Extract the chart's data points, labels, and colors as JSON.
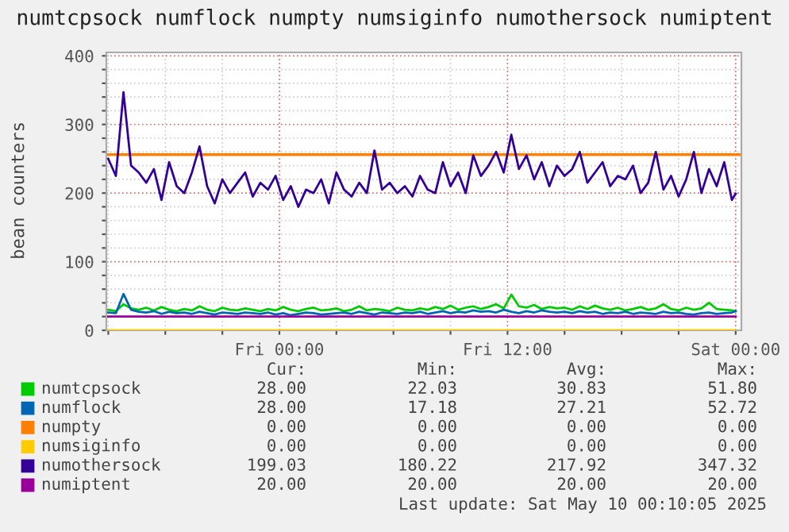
{
  "chart_data": {
    "type": "line",
    "title": "numtcpsock numflock numpty numsiginfo numothersock numiptent",
    "ylabel": "bean counters",
    "x": [
      "2025-05-08T15:00",
      "2025-05-08T15:24",
      "2025-05-08T15:48",
      "2025-05-08T16:12",
      "2025-05-08T16:36",
      "2025-05-08T17:00",
      "2025-05-08T17:24",
      "2025-05-08T17:48",
      "2025-05-08T18:12",
      "2025-05-08T18:36",
      "2025-05-08T19:00",
      "2025-05-08T19:24",
      "2025-05-08T19:48",
      "2025-05-08T20:12",
      "2025-05-08T20:36",
      "2025-05-08T21:00",
      "2025-05-08T21:24",
      "2025-05-08T21:48",
      "2025-05-08T22:12",
      "2025-05-08T22:36",
      "2025-05-08T23:00",
      "2025-05-08T23:24",
      "2025-05-08T23:48",
      "2025-05-09T00:12",
      "2025-05-09T00:36",
      "2025-05-09T01:00",
      "2025-05-09T01:24",
      "2025-05-09T01:48",
      "2025-05-09T02:12",
      "2025-05-09T02:36",
      "2025-05-09T03:00",
      "2025-05-09T03:24",
      "2025-05-09T03:48",
      "2025-05-09T04:12",
      "2025-05-09T04:36",
      "2025-05-09T05:00",
      "2025-05-09T05:24",
      "2025-05-09T05:48",
      "2025-05-09T06:12",
      "2025-05-09T06:36",
      "2025-05-09T07:00",
      "2025-05-09T07:24",
      "2025-05-09T07:48",
      "2025-05-09T08:12",
      "2025-05-09T08:36",
      "2025-05-09T09:00",
      "2025-05-09T09:24",
      "2025-05-09T09:48",
      "2025-05-09T10:12",
      "2025-05-09T10:36",
      "2025-05-09T11:00",
      "2025-05-09T11:24",
      "2025-05-09T11:48",
      "2025-05-09T12:12",
      "2025-05-09T12:36",
      "2025-05-09T13:00",
      "2025-05-09T13:24",
      "2025-05-09T13:48",
      "2025-05-09T14:12",
      "2025-05-09T14:36",
      "2025-05-09T15:00",
      "2025-05-09T15:24",
      "2025-05-09T15:48",
      "2025-05-09T16:12",
      "2025-05-09T16:36",
      "2025-05-09T17:00",
      "2025-05-09T17:24",
      "2025-05-09T17:48",
      "2025-05-09T18:12",
      "2025-05-09T18:36",
      "2025-05-09T19:00",
      "2025-05-09T19:24",
      "2025-05-09T19:48",
      "2025-05-09T20:12",
      "2025-05-09T20:36",
      "2025-05-09T21:00",
      "2025-05-09T21:24",
      "2025-05-09T21:48",
      "2025-05-09T22:12",
      "2025-05-09T22:36",
      "2025-05-09T23:00",
      "2025-05-09T23:24",
      "2025-05-09T23:48",
      "2025-05-10T00:00"
    ],
    "series": [
      {
        "name": "numtcpsock",
        "color": "#00cc00",
        "values": [
          30,
          28,
          38,
          32,
          30,
          33,
          29,
          34,
          30,
          28,
          31,
          29,
          35,
          30,
          28,
          33,
          30,
          29,
          32,
          30,
          28,
          31,
          29,
          34,
          30,
          28,
          31,
          33,
          29,
          30,
          32,
          28,
          30,
          35,
          29,
          31,
          30,
          28,
          33,
          30,
          29,
          32,
          30,
          34,
          31,
          36,
          30,
          33,
          35,
          31,
          34,
          38,
          32,
          52,
          35,
          33,
          37,
          31,
          34,
          32,
          33,
          30,
          35,
          31,
          36,
          32,
          30,
          33,
          29,
          31,
          34,
          30,
          32,
          38,
          31,
          29,
          33,
          30,
          32,
          40,
          31,
          30,
          29,
          28
        ]
      },
      {
        "name": "numflock",
        "color": "#0066b3",
        "values": [
          26,
          25,
          53,
          30,
          27,
          26,
          28,
          24,
          27,
          25,
          26,
          24,
          27,
          25,
          23,
          26,
          25,
          24,
          26,
          25,
          24,
          26,
          23,
          25,
          22,
          24,
          26,
          25,
          23,
          24,
          25,
          26,
          24,
          27,
          25,
          23,
          26,
          25,
          24,
          26,
          25,
          27,
          24,
          26,
          28,
          25,
          27,
          26,
          29,
          27,
          28,
          26,
          30,
          27,
          25,
          28,
          26,
          29,
          27,
          26,
          27,
          25,
          28,
          26,
          27,
          24,
          26,
          25,
          27,
          24,
          26,
          25,
          24,
          27,
          25,
          26,
          24,
          23,
          25,
          26,
          24,
          25,
          26,
          28
        ]
      },
      {
        "name": "numpty",
        "color": "#ff8000",
        "values": [
          null,
          null,
          null,
          null,
          null,
          null,
          null,
          null,
          null,
          null,
          null,
          null,
          null,
          null,
          null,
          null,
          null,
          null,
          null,
          null,
          null,
          null,
          null,
          null,
          null,
          null,
          null,
          null,
          null,
          null,
          null,
          null,
          null,
          null,
          null,
          null,
          null,
          null,
          null,
          null,
          null,
          null,
          null,
          null,
          null,
          null,
          null,
          null,
          null,
          null,
          null,
          null,
          null,
          null,
          null,
          null,
          null,
          null,
          null,
          null,
          null,
          null,
          null,
          null,
          null,
          null,
          null,
          null,
          null,
          null,
          null,
          null,
          null,
          null,
          null,
          null,
          null,
          null,
          null,
          null,
          null,
          null,
          null,
          null
        ]
      },
      {
        "name": "numsiginfo",
        "color": "#ffcc00",
        "values": [
          0,
          0,
          0,
          0,
          0,
          0,
          0,
          0,
          0,
          0,
          0,
          0,
          0,
          0,
          0,
          0,
          0,
          0,
          0,
          0,
          0,
          0,
          0,
          0,
          0,
          0,
          0,
          0,
          0,
          0,
          0,
          0,
          0,
          0,
          0,
          0,
          0,
          0,
          0,
          0,
          0,
          0,
          0,
          0,
          0,
          0,
          0,
          0,
          0,
          0,
          0,
          0,
          0,
          0,
          0,
          0,
          0,
          0,
          0,
          0,
          0,
          0,
          0,
          0,
          0,
          0,
          0,
          0,
          0,
          0,
          0,
          0,
          0,
          0,
          0,
          0,
          0,
          0,
          0,
          0,
          0,
          0,
          0,
          0
        ]
      },
      {
        "name": "numothersock",
        "color": "#330099",
        "values": [
          250,
          225,
          347,
          240,
          230,
          215,
          235,
          190,
          245,
          210,
          200,
          230,
          268,
          210,
          185,
          220,
          200,
          215,
          230,
          195,
          215,
          205,
          225,
          190,
          210,
          180,
          205,
          200,
          220,
          185,
          230,
          205,
          195,
          215,
          200,
          262,
          205,
          215,
          200,
          210,
          195,
          225,
          205,
          200,
          245,
          210,
          230,
          200,
          255,
          225,
          240,
          260,
          230,
          285,
          235,
          255,
          220,
          245,
          210,
          240,
          225,
          235,
          260,
          215,
          230,
          245,
          210,
          225,
          220,
          240,
          200,
          215,
          260,
          205,
          225,
          195,
          220,
          260,
          200,
          235,
          210,
          245,
          190,
          199
        ]
      },
      {
        "name": "numiptent",
        "color": "#990099",
        "values": [
          20,
          20,
          20,
          20,
          20,
          20,
          20,
          20,
          20,
          20,
          20,
          20,
          20,
          20,
          20,
          20,
          20,
          20,
          20,
          20,
          20,
          20,
          20,
          20,
          20,
          20,
          20,
          20,
          20,
          20,
          20,
          20,
          20,
          20,
          20,
          20,
          20,
          20,
          20,
          20,
          20,
          20,
          20,
          20,
          20,
          20,
          20,
          20,
          20,
          20,
          20,
          20,
          20,
          20,
          20,
          20,
          20,
          20,
          20,
          20,
          20,
          20,
          20,
          20,
          20,
          20,
          20,
          20,
          20,
          20,
          20,
          20,
          20,
          20,
          20,
          20,
          20,
          20,
          20,
          20,
          20,
          20,
          20,
          20
        ]
      }
    ],
    "ref_lines": [
      {
        "axis": "y",
        "value": 256,
        "color": "#ff8000"
      }
    ],
    "xlim": [
      "2025-05-08T14:54",
      "2025-05-10T00:18"
    ],
    "ylim": [
      0,
      405
    ],
    "xticks": [
      {
        "value": "2025-05-08T15:00",
        "label": null
      },
      {
        "value": "2025-05-08T18:00",
        "label": null
      },
      {
        "value": "2025-05-08T21:00",
        "label": null
      },
      {
        "value": "2025-05-09T00:00",
        "label": "Fri 00:00"
      },
      {
        "value": "2025-05-09T03:00",
        "label": null
      },
      {
        "value": "2025-05-09T06:00",
        "label": null
      },
      {
        "value": "2025-05-09T09:00",
        "label": null
      },
      {
        "value": "2025-05-09T12:00",
        "label": "Fri 12:00"
      },
      {
        "value": "2025-05-09T15:00",
        "label": null
      },
      {
        "value": "2025-05-09T18:00",
        "label": null
      },
      {
        "value": "2025-05-09T21:00",
        "label": null
      },
      {
        "value": "2025-05-10T00:00",
        "label": "Sat 00:00"
      }
    ],
    "yticks": [
      0,
      {
        "value": 20,
        "label": null
      },
      {
        "value": 40,
        "label": null
      },
      {
        "value": 60,
        "label": null
      },
      {
        "value": 80,
        "label": null
      },
      100,
      {
        "value": 120,
        "label": null
      },
      {
        "value": 140,
        "label": null
      },
      {
        "value": 160,
        "label": null
      },
      {
        "value": 180,
        "label": null
      },
      200,
      {
        "value": 220,
        "label": null
      },
      {
        "value": 240,
        "label": null
      },
      {
        "value": 260,
        "label": null
      },
      {
        "value": 280,
        "label": null
      },
      300,
      {
        "value": 320,
        "label": null
      },
      {
        "value": 340,
        "label": null
      },
      {
        "value": 360,
        "label": null
      },
      {
        "value": 380,
        "label": null
      },
      400
    ],
    "grid": true,
    "legend": "bottom",
    "marker": "none",
    "line_style": "solid",
    "annotations": [
      "Cur:",
      "Min:",
      "Avg:",
      "Max:",
      "28.00",
      "22.03",
      "30.83",
      "51.80",
      "28.00",
      "17.18",
      "27.21",
      "52.72",
      "0.00",
      "0.00",
      "0.00",
      "0.00",
      "0.00",
      "0.00",
      "0.00",
      "0.00",
      "199.03",
      "180.22",
      "217.92",
      "347.32",
      "20.00",
      "20.00",
      "20.00",
      "20.00",
      "Last update: Sat May 10 00:10:05 2025"
    ]
  }
}
